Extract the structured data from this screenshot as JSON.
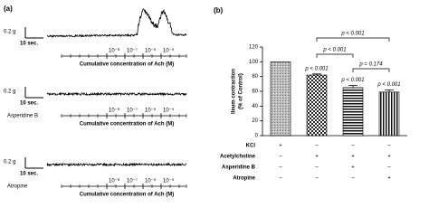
{
  "panel_a": {
    "label": "(a)",
    "traces": [
      {
        "scale_y": "0.2 g",
        "scale_x": "10 sec.",
        "ticks": [
          "10⁻⁸",
          "10⁻⁷",
          "10⁻⁶",
          "10⁻⁵"
        ],
        "x_label": "Cumulative concentration of Ach (M)"
      },
      {
        "scale_y": "0.2 g",
        "scale_x": "10 sec.",
        "treatment": "Asperidine B",
        "ticks": [
          "10⁻⁸",
          "10⁻⁷",
          "10⁻⁶",
          "10⁻⁵"
        ],
        "x_label": "Cumulative concentration of Ach (M)"
      },
      {
        "scale_y": "0.2 g",
        "scale_x": "10 sec.",
        "treatment": "Atropine",
        "ticks": [
          "10⁻⁸",
          "10⁻⁷",
          "10⁻⁶",
          "10⁻⁵"
        ],
        "x_label": "Cumulative concentration of Ach (M)"
      }
    ]
  },
  "chart_data": {
    "type": "bar",
    "panel_label": "(b)",
    "y_label": [
      "Ileum contraction",
      "(% of Control)"
    ],
    "values": [
      100,
      82,
      65,
      59
    ],
    "errors": [
      null,
      1.5,
      3,
      3
    ],
    "bar_labels": [
      null,
      "p < 0.001",
      "p < 0.001",
      "p < 0.001"
    ],
    "comparisons": [
      "p = 0.174",
      "p < 0.001",
      "p < 0.001"
    ],
    "ylim": [
      0,
      120
    ],
    "yticks": [
      0,
      20,
      40,
      60,
      80,
      100,
      120
    ],
    "treatments": [
      {
        "label": "KCl",
        "cells": [
          "+",
          "–",
          "–",
          "–"
        ]
      },
      {
        "label": "Acetylcholine",
        "cells": [
          "–",
          "+",
          "+",
          "+"
        ]
      },
      {
        "label": "Asperidine B",
        "cells": [
          "–",
          "–",
          "+",
          "–"
        ]
      },
      {
        "label": "Atropine",
        "cells": [
          "–",
          "–",
          "–",
          "+"
        ]
      }
    ]
  }
}
